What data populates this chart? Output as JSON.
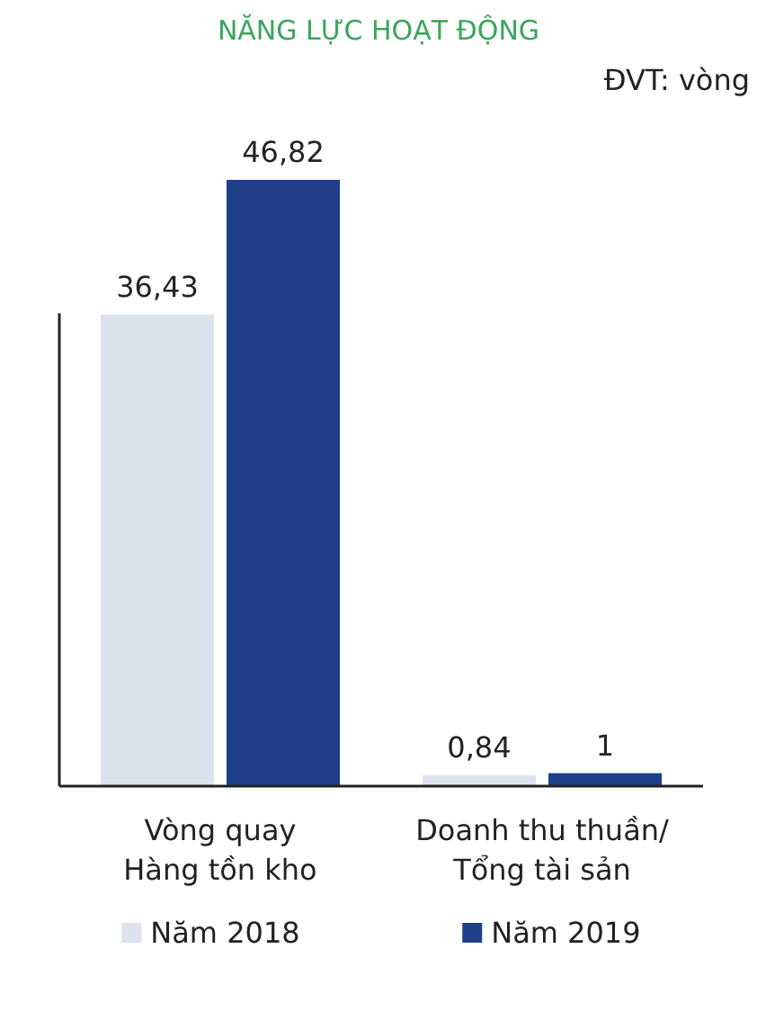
{
  "chart_data": {
    "type": "bar",
    "title": "NĂNG LỰC HOẠT ĐỘNG",
    "annotations": [
      "ĐVT: vòng"
    ],
    "categories": [
      "Vòng quay Hàng tồn kho",
      "Doanh thu thuần/ Tổng tài sản"
    ],
    "series": [
      {
        "name": "Năm 2018",
        "color": "#dde3ee",
        "values": [
          36.43,
          0.84
        ],
        "value_labels": [
          "36,43",
          "0,84"
        ]
      },
      {
        "name": "Năm 2019",
        "color": "#1f3f8a",
        "values": [
          46.82,
          1
        ],
        "value_labels": [
          "46,82",
          "1"
        ]
      }
    ],
    "legend": "bottom"
  }
}
